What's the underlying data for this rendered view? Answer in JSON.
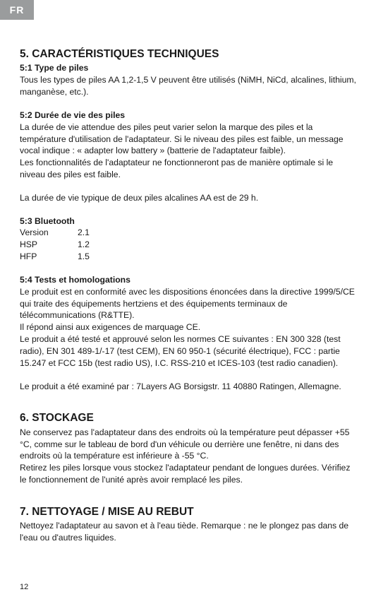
{
  "langTab": "FR",
  "pageNumber": "12",
  "sections": {
    "s5": {
      "title": "5. CARACTÉRISTIQUES TECHNIQUES",
      "s51_head": "5:1 Type de piles",
      "s51_body": "Tous les types de piles AA 1,2-1,5 V peuvent être utilisés (NiMH, NiCd, alcalines, lithium, manganèse, etc.).",
      "s52_head": "5:2 Durée de vie des piles",
      "s52_body1": "La durée de vie attendue des piles peut varier selon la marque des piles et la température d'utilisation de l'adaptateur. Si le niveau des piles est faible, un message vocal indique : « adapter low battery » (batterie de l'adaptateur faible).",
      "s52_body2": "Les fonctionnalités de l'adaptateur ne fonctionneront pas de manière optimale si le niveau des piles est faible.",
      "s52_body3": "La durée de vie typique de deux piles alcalines AA est de 29 h.",
      "s53_head": "5:3 Bluetooth",
      "bt": {
        "r1_label": "Version",
        "r1_val": "2.1",
        "r2_label": "HSP",
        "r2_val": "1.2",
        "r3_label": "HFP",
        "r3_val": "1.5"
      },
      "s54_head": "5:4 Tests et homologations",
      "s54_body1": "Le produit est en conformité avec les dispositions énoncées dans la directive 1999/5/CE qui traite des équipements hertziens et des équipements terminaux de télécommunications (R&TTE).",
      "s54_body2": "Il répond ainsi aux exigences de marquage CE.",
      "s54_body3": "Le produit a été testé et approuvé selon les normes CE suivantes : EN 300 328 (test radio), EN 301 489-1/-17 (test CEM), EN 60 950-1 (sécurité électrique), FCC : partie 15.247 et FCC 15b (test radio US), I.C. RSS-210 et ICES-103 (test radio canadien).",
      "s54_body4": "Le produit a été examiné par : 7Layers AG Borsigstr. 11 40880 Ratingen, Allemagne."
    },
    "s6": {
      "title": "6. STOCKAGE",
      "body1": "Ne conservez pas l'adaptateur dans des endroits où la température peut dépasser +55 °C, comme sur le tableau de bord d'un véhicule ou derrière une fenêtre, ni dans des endroits où la température est inférieure à -55 °C.",
      "body2": "Retirez les piles lorsque vous stockez l'adaptateur pendant de longues durées. Vérifiez le fonctionnement de l'unité après avoir remplacé les piles."
    },
    "s7": {
      "title": "7. NETTOYAGE / MISE AU REBUT",
      "body1": "Nettoyez l'adaptateur au savon et à l'eau tiède. Remarque : ne le plongez pas dans de l'eau ou d'autres liquides."
    }
  }
}
